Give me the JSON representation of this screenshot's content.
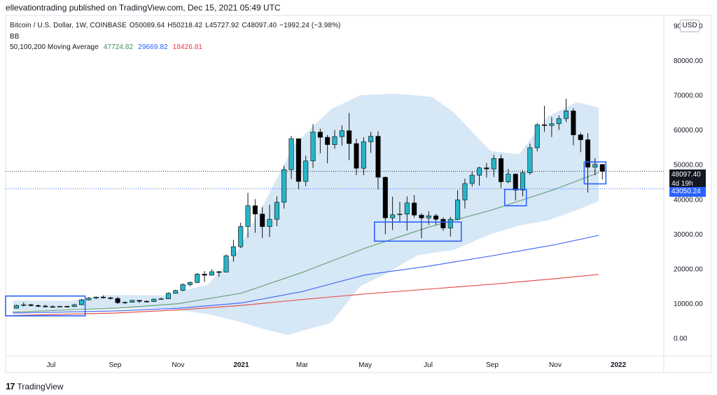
{
  "header": {
    "published": "ellevationtrading published on TradingView.com, Dec 15, 2021 05:49 UTC"
  },
  "legend": {
    "symbol": "Bitcoin / U.S. Dollar, 1W, COINBASE",
    "o_label": "O",
    "o": "50089.64",
    "h_label": "H",
    "h": "50218.42",
    "l_label": "L",
    "l": "45727.92",
    "c_label": "C",
    "c": "48097.40",
    "change": "−1992.24 (−3.98%)",
    "bb_label": "BB",
    "ma_label": "50,100,200 Moving Average",
    "ma50": "47724.82",
    "ma100": "29669.82",
    "ma200": "18426.81"
  },
  "currency_button": "USD",
  "price_tags": {
    "last_price": "48097.40",
    "countdown": "4d 19h",
    "level": "43050.24"
  },
  "footer": {
    "brand_mark": "17",
    "brand": "TradingView"
  },
  "colors": {
    "up": "#26b5c9",
    "down": "#000000",
    "ma50": "#6aa57b",
    "ma100": "#4a6cf5",
    "ma200": "#e5544c",
    "bb_fill": "#cfe3f5",
    "box": "#2962ff"
  },
  "chart_data": {
    "type": "candlestick",
    "y_axis": {
      "ticks": [
        0,
        10000,
        20000,
        30000,
        40000,
        50000,
        60000,
        70000,
        80000,
        90000
      ],
      "tick_labels": [
        "0.00",
        "10000.00",
        "20000.00",
        "30000.00",
        "40000.00",
        "50000.00",
        "60000.00",
        "70000.00",
        "80000.00",
        "90000.00"
      ],
      "range": [
        -5000,
        93000
      ]
    },
    "x_axis": {
      "labels": [
        {
          "text": "Jul",
          "date": "2020-07-01"
        },
        {
          "text": "Sep",
          "date": "2020-09-01"
        },
        {
          "text": "Nov",
          "date": "2020-11-01"
        },
        {
          "text": "2021",
          "date": "2021-01-01"
        },
        {
          "text": "Mar",
          "date": "2021-03-01"
        },
        {
          "text": "May",
          "date": "2021-05-01"
        },
        {
          "text": "Jul",
          "date": "2021-07-01"
        },
        {
          "text": "Sep",
          "date": "2021-09-01"
        },
        {
          "text": "Nov",
          "date": "2021-11-01"
        },
        {
          "text": "2022",
          "date": "2022-01-01"
        }
      ],
      "range": [
        "2020-05-18",
        "2022-02-14"
      ]
    },
    "candles": [
      {
        "t": "2020-05-25",
        "o": 8700,
        "h": 9700,
        "l": 8600,
        "c": 9500
      },
      {
        "t": "2020-06-01",
        "o": 9500,
        "h": 10400,
        "l": 9200,
        "c": 9700
      },
      {
        "t": "2020-06-08",
        "o": 9700,
        "h": 9950,
        "l": 9250,
        "c": 9450
      },
      {
        "t": "2020-06-15",
        "o": 9450,
        "h": 9800,
        "l": 9000,
        "c": 9300
      },
      {
        "t": "2020-06-22",
        "o": 9300,
        "h": 9700,
        "l": 8900,
        "c": 9150
      },
      {
        "t": "2020-06-29",
        "o": 9150,
        "h": 9450,
        "l": 8950,
        "c": 9100
      },
      {
        "t": "2020-07-06",
        "o": 9100,
        "h": 9400,
        "l": 9000,
        "c": 9250
      },
      {
        "t": "2020-07-13",
        "o": 9250,
        "h": 9400,
        "l": 9000,
        "c": 9150
      },
      {
        "t": "2020-07-20",
        "o": 9150,
        "h": 9950,
        "l": 9100,
        "c": 9700
      },
      {
        "t": "2020-07-27",
        "o": 9700,
        "h": 11400,
        "l": 9600,
        "c": 11100
      },
      {
        "t": "2020-08-03",
        "o": 11100,
        "h": 11900,
        "l": 10900,
        "c": 11600
      },
      {
        "t": "2020-08-10",
        "o": 11600,
        "h": 12100,
        "l": 11300,
        "c": 11900
      },
      {
        "t": "2020-08-17",
        "o": 11900,
        "h": 12400,
        "l": 11500,
        "c": 11700
      },
      {
        "t": "2020-08-24",
        "o": 11700,
        "h": 12000,
        "l": 11200,
        "c": 11500
      },
      {
        "t": "2020-08-31",
        "o": 11500,
        "h": 12000,
        "l": 9900,
        "c": 10300
      },
      {
        "t": "2020-09-07",
        "o": 10300,
        "h": 10600,
        "l": 9900,
        "c": 10400
      },
      {
        "t": "2020-09-14",
        "o": 10400,
        "h": 11100,
        "l": 10300,
        "c": 10950
      },
      {
        "t": "2020-09-21",
        "o": 10950,
        "h": 11000,
        "l": 10200,
        "c": 10700
      },
      {
        "t": "2020-09-28",
        "o": 10700,
        "h": 10950,
        "l": 10400,
        "c": 10600
      },
      {
        "t": "2020-10-05",
        "o": 10600,
        "h": 11500,
        "l": 10500,
        "c": 11300
      },
      {
        "t": "2020-10-12",
        "o": 11300,
        "h": 11700,
        "l": 11200,
        "c": 11400
      },
      {
        "t": "2020-10-19",
        "o": 11400,
        "h": 13300,
        "l": 11400,
        "c": 13000
      },
      {
        "t": "2020-10-26",
        "o": 13000,
        "h": 14000,
        "l": 12900,
        "c": 13800
      },
      {
        "t": "2020-11-02",
        "o": 13800,
        "h": 15900,
        "l": 13600,
        "c": 15500
      },
      {
        "t": "2020-11-09",
        "o": 15500,
        "h": 16400,
        "l": 15000,
        "c": 16100
      },
      {
        "t": "2020-11-16",
        "o": 16100,
        "h": 18800,
        "l": 15900,
        "c": 18500
      },
      {
        "t": "2020-11-23",
        "o": 18500,
        "h": 19400,
        "l": 16300,
        "c": 18200
      },
      {
        "t": "2020-11-30",
        "o": 18200,
        "h": 19900,
        "l": 18100,
        "c": 19200
      },
      {
        "t": "2020-12-07",
        "o": 19200,
        "h": 19400,
        "l": 17700,
        "c": 19100
      },
      {
        "t": "2020-12-14",
        "o": 19100,
        "h": 24200,
        "l": 19000,
        "c": 23800
      },
      {
        "t": "2020-12-21",
        "o": 23800,
        "h": 28400,
        "l": 22100,
        "c": 26400
      },
      {
        "t": "2020-12-28",
        "o": 26400,
        "h": 33300,
        "l": 26000,
        "c": 32200
      },
      {
        "t": "2021-01-04",
        "o": 32200,
        "h": 41900,
        "l": 29000,
        "c": 38200
      },
      {
        "t": "2021-01-11",
        "o": 38200,
        "h": 40100,
        "l": 30400,
        "c": 35800
      },
      {
        "t": "2021-01-18",
        "o": 35800,
        "h": 37800,
        "l": 28900,
        "c": 32200
      },
      {
        "t": "2021-01-25",
        "o": 32200,
        "h": 38500,
        "l": 29200,
        "c": 34300
      },
      {
        "t": "2021-02-01",
        "o": 34300,
        "h": 40900,
        "l": 32300,
        "c": 39200
      },
      {
        "t": "2021-02-08",
        "o": 39200,
        "h": 49700,
        "l": 37400,
        "c": 48600
      },
      {
        "t": "2021-02-15",
        "o": 48600,
        "h": 58300,
        "l": 45900,
        "c": 57500
      },
      {
        "t": "2021-02-22",
        "o": 57500,
        "h": 57500,
        "l": 43000,
        "c": 45200
      },
      {
        "t": "2021-03-01",
        "o": 45200,
        "h": 52600,
        "l": 43800,
        "c": 51100
      },
      {
        "t": "2021-03-08",
        "o": 51100,
        "h": 61700,
        "l": 49100,
        "c": 59400
      },
      {
        "t": "2021-03-15",
        "o": 59400,
        "h": 60400,
        "l": 53300,
        "c": 57900
      },
      {
        "t": "2021-03-22",
        "o": 57900,
        "h": 58600,
        "l": 50400,
        "c": 55800
      },
      {
        "t": "2021-03-29",
        "o": 55800,
        "h": 60000,
        "l": 54600,
        "c": 58100
      },
      {
        "t": "2021-04-05",
        "o": 58100,
        "h": 61300,
        "l": 55500,
        "c": 59800
      },
      {
        "t": "2021-04-12",
        "o": 59800,
        "h": 64900,
        "l": 51300,
        "c": 56100
      },
      {
        "t": "2021-04-19",
        "o": 56100,
        "h": 57500,
        "l": 47000,
        "c": 49000
      },
      {
        "t": "2021-04-26",
        "o": 49000,
        "h": 57900,
        "l": 47000,
        "c": 56600
      },
      {
        "t": "2021-05-03",
        "o": 56600,
        "h": 59500,
        "l": 53400,
        "c": 58200
      },
      {
        "t": "2021-05-10",
        "o": 58200,
        "h": 59600,
        "l": 42900,
        "c": 46400
      },
      {
        "t": "2021-05-17",
        "o": 46400,
        "h": 46600,
        "l": 30000,
        "c": 34700
      },
      {
        "t": "2021-05-24",
        "o": 34700,
        "h": 40800,
        "l": 31200,
        "c": 35600
      },
      {
        "t": "2021-05-31",
        "o": 35600,
        "h": 39300,
        "l": 33400,
        "c": 35800
      },
      {
        "t": "2021-06-07",
        "o": 35800,
        "h": 40900,
        "l": 31000,
        "c": 39000
      },
      {
        "t": "2021-06-14",
        "o": 39000,
        "h": 41300,
        "l": 34800,
        "c": 35500
      },
      {
        "t": "2021-06-21",
        "o": 35500,
        "h": 36000,
        "l": 28800,
        "c": 34700
      },
      {
        "t": "2021-06-28",
        "o": 34700,
        "h": 36600,
        "l": 32700,
        "c": 35300
      },
      {
        "t": "2021-07-05",
        "o": 35300,
        "h": 35900,
        "l": 32700,
        "c": 34300
      },
      {
        "t": "2021-07-12",
        "o": 34300,
        "h": 34800,
        "l": 31000,
        "c": 31800
      },
      {
        "t": "2021-07-19",
        "o": 31800,
        "h": 35000,
        "l": 29300,
        "c": 34300
      },
      {
        "t": "2021-07-26",
        "o": 34300,
        "h": 42600,
        "l": 34000,
        "c": 39900
      },
      {
        "t": "2021-08-02",
        "o": 39900,
        "h": 46000,
        "l": 37400,
        "c": 44600
      },
      {
        "t": "2021-08-09",
        "o": 44600,
        "h": 48100,
        "l": 43700,
        "c": 47000
      },
      {
        "t": "2021-08-16",
        "o": 47000,
        "h": 49400,
        "l": 44000,
        "c": 49100
      },
      {
        "t": "2021-08-23",
        "o": 49100,
        "h": 50500,
        "l": 46300,
        "c": 48800
      },
      {
        "t": "2021-08-30",
        "o": 48800,
        "h": 52900,
        "l": 46500,
        "c": 51800
      },
      {
        "t": "2021-09-06",
        "o": 51800,
        "h": 52900,
        "l": 43300,
        "c": 45100
      },
      {
        "t": "2021-09-13",
        "o": 45100,
        "h": 48800,
        "l": 44700,
        "c": 47300
      },
      {
        "t": "2021-09-20",
        "o": 47300,
        "h": 47500,
        "l": 39700,
        "c": 42700
      },
      {
        "t": "2021-09-27",
        "o": 42700,
        "h": 48500,
        "l": 40900,
        "c": 47700
      },
      {
        "t": "2021-10-04",
        "o": 47700,
        "h": 56100,
        "l": 47100,
        "c": 54900
      },
      {
        "t": "2021-10-11",
        "o": 54900,
        "h": 62000,
        "l": 53900,
        "c": 61500
      },
      {
        "t": "2021-10-18",
        "o": 61500,
        "h": 67000,
        "l": 59500,
        "c": 61300
      },
      {
        "t": "2021-10-25",
        "o": 61300,
        "h": 63700,
        "l": 58000,
        "c": 61800
      },
      {
        "t": "2021-11-01",
        "o": 61800,
        "h": 64200,
        "l": 60000,
        "c": 63300
      },
      {
        "t": "2021-11-08",
        "o": 63300,
        "h": 69000,
        "l": 62300,
        "c": 65500
      },
      {
        "t": "2021-11-15",
        "o": 65500,
        "h": 66300,
        "l": 55600,
        "c": 58600
      },
      {
        "t": "2021-11-22",
        "o": 58600,
        "h": 59200,
        "l": 53600,
        "c": 57200
      },
      {
        "t": "2021-11-29",
        "o": 57200,
        "h": 59100,
        "l": 42000,
        "c": 49300
      },
      {
        "t": "2021-12-06",
        "o": 49300,
        "h": 51900,
        "l": 47000,
        "c": 50100
      },
      {
        "t": "2021-12-13",
        "o": 50089.64,
        "h": 50218.42,
        "l": 45727.92,
        "c": 48097.4
      }
    ],
    "series": [
      {
        "name": "MA 50",
        "points": [
          [
            "2020-05-25",
            7600
          ],
          [
            "2020-09-01",
            8700
          ],
          [
            "2020-11-01",
            10000
          ],
          [
            "2021-01-01",
            13000
          ],
          [
            "2021-03-01",
            19000
          ],
          [
            "2021-05-01",
            26000
          ],
          [
            "2021-07-01",
            32000
          ],
          [
            "2021-09-01",
            37000
          ],
          [
            "2021-11-01",
            43000
          ],
          [
            "2021-12-13",
            47724.82
          ]
        ]
      },
      {
        "name": "MA 100",
        "points": [
          [
            "2020-05-25",
            7300
          ],
          [
            "2020-09-01",
            7900
          ],
          [
            "2020-11-01",
            8700
          ],
          [
            "2021-01-01",
            10200
          ],
          [
            "2021-03-01",
            13500
          ],
          [
            "2021-05-01",
            18300
          ],
          [
            "2021-07-01",
            20800
          ],
          [
            "2021-09-01",
            23800
          ],
          [
            "2021-11-01",
            27000
          ],
          [
            "2021-12-13",
            29669.82
          ]
        ]
      },
      {
        "name": "MA 200",
        "points": [
          [
            "2020-05-25",
            6600
          ],
          [
            "2020-09-01",
            7300
          ],
          [
            "2020-11-01",
            8200
          ],
          [
            "2021-01-01",
            9500
          ],
          [
            "2021-03-01",
            11200
          ],
          [
            "2021-05-01",
            12800
          ],
          [
            "2021-07-01",
            14200
          ],
          [
            "2021-09-01",
            15600
          ],
          [
            "2021-11-01",
            17200
          ],
          [
            "2021-12-13",
            18426.81
          ]
        ]
      }
    ],
    "bollinger": {
      "upper": [
        [
          "2020-05-25",
          10900
        ],
        [
          "2020-07-20",
          10800
        ],
        [
          "2020-08-24",
          12500
        ],
        [
          "2020-10-19",
          12400
        ],
        [
          "2020-11-30",
          15500
        ],
        [
          "2020-12-28",
          25000
        ],
        [
          "2021-01-25",
          40000
        ],
        [
          "2021-02-22",
          56000
        ],
        [
          "2021-03-29",
          66000
        ],
        [
          "2021-04-26",
          70000
        ],
        [
          "2021-05-31",
          70500
        ],
        [
          "2021-07-05",
          69500
        ],
        [
          "2021-07-26",
          65000
        ],
        [
          "2021-08-30",
          54000
        ],
        [
          "2021-09-27",
          53000
        ],
        [
          "2021-10-25",
          64000
        ],
        [
          "2021-11-22",
          68000
        ],
        [
          "2021-12-13",
          66500
        ]
      ],
      "lower": [
        [
          "2020-05-25",
          8000
        ],
        [
          "2020-07-20",
          8200
        ],
        [
          "2020-08-24",
          8600
        ],
        [
          "2020-10-19",
          8700
        ],
        [
          "2020-11-30",
          7000
        ],
        [
          "2020-12-28",
          5000
        ],
        [
          "2021-01-25",
          2500
        ],
        [
          "2021-02-15",
          1000
        ],
        [
          "2021-03-29",
          4500
        ],
        [
          "2021-04-26",
          15000
        ],
        [
          "2021-05-17",
          18000
        ],
        [
          "2021-06-21",
          24000
        ],
        [
          "2021-07-26",
          25500
        ],
        [
          "2021-08-30",
          30000
        ],
        [
          "2021-09-27",
          32500
        ],
        [
          "2021-10-25",
          34000
        ],
        [
          "2021-11-22",
          37000
        ],
        [
          "2021-12-13",
          39500
        ]
      ]
    },
    "horizontal_lines": [
      {
        "value": 48097.4,
        "style": "dotted",
        "color": "#131722"
      },
      {
        "value": 43050.24,
        "style": "dotted",
        "color": "#2962ff"
      }
    ],
    "annotation_boxes": [
      {
        "t0": "2020-05-18",
        "t1": "2020-08-03",
        "y0": 6500,
        "y1": 12200
      },
      {
        "t0": "2021-05-10",
        "t1": "2021-08-02",
        "y0": 28000,
        "y1": 33500
      },
      {
        "t0": "2021-09-13",
        "t1": "2021-10-04",
        "y0": 38200,
        "y1": 42900
      },
      {
        "t0": "2021-11-29",
        "t1": "2021-12-20",
        "y0": 44500,
        "y1": 50800
      }
    ],
    "grid": false
  }
}
